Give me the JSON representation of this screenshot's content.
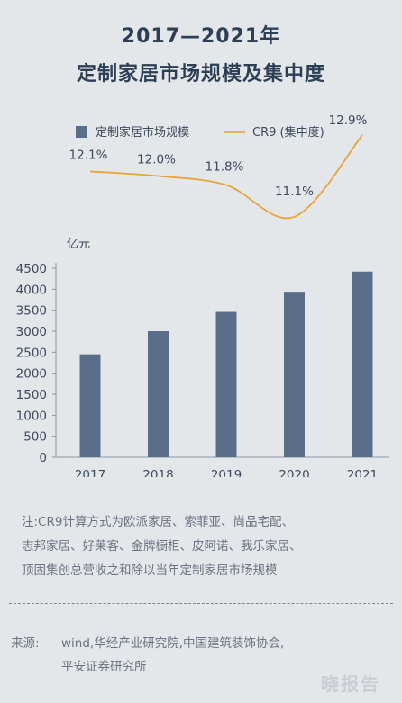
{
  "title_line1": "2017—2021年",
  "title_line2": "定制家居市场规模及集中度",
  "chart_data": {
    "type": "bar",
    "categories": [
      "2017",
      "2018",
      "2019",
      "2020",
      "2021"
    ],
    "series": [
      {
        "name": "定制家居市场规模",
        "type": "bar",
        "axis": "left",
        "values": [
          2450,
          3000,
          3460,
          3940,
          4420
        ],
        "color": "#5a6e89"
      },
      {
        "name": "CR9 (集中度)",
        "type": "line",
        "axis": "right",
        "values": [
          12.1,
          12.0,
          11.8,
          11.1,
          12.9
        ],
        "labels": [
          "12.1%",
          "12.0%",
          "11.8%",
          "11.1%",
          "12.9%"
        ],
        "color": "#e8a33a"
      }
    ],
    "ylabel": "亿元",
    "ylim": [
      0,
      4500
    ],
    "yticks": [
      "0",
      "500",
      "1000",
      "1500",
      "2000",
      "2500",
      "3000",
      "3500",
      "4000",
      "4500"
    ],
    "legend_position": "top"
  },
  "note_lines": [
    "注:CR9计算方式为欧派家居、索菲亚、尚品宅配、",
    "志邦家居、好莱客、金牌橱柜、皮阿诺、我乐家居、",
    "顶固集创总营收之和除以当年定制家居市场规模"
  ],
  "source_label": "来源:",
  "source_lines": [
    "wind,华经产业研究院,中国建筑装饰协会,",
    "平安证券研究所"
  ],
  "logo_text": "晓报告"
}
